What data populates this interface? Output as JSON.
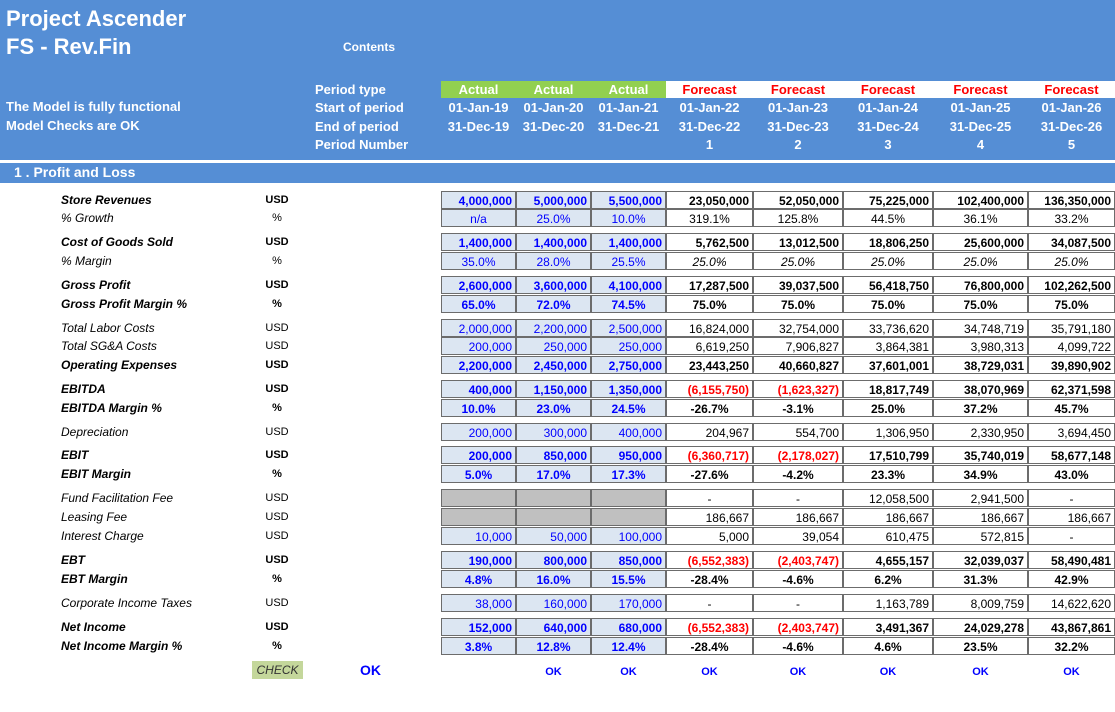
{
  "header": {
    "title1": "Project Ascender",
    "title2": "FS - Rev.Fin",
    "contents": "Contents",
    "status1": "The Model is fully functional",
    "status2": "Model Checks are OK",
    "row_labels": [
      "Period type",
      "Start of period",
      "End of period",
      "Period Number"
    ]
  },
  "periods": [
    {
      "type": "Actual",
      "start": "01-Jan-19",
      "end": "31-Dec-19",
      "num": ""
    },
    {
      "type": "Actual",
      "start": "01-Jan-20",
      "end": "31-Dec-20",
      "num": ""
    },
    {
      "type": "Actual",
      "start": "01-Jan-21",
      "end": "31-Dec-21",
      "num": ""
    },
    {
      "type": "Forecast",
      "start": "01-Jan-22",
      "end": "31-Dec-22",
      "num": "1"
    },
    {
      "type": "Forecast",
      "start": "01-Jan-23",
      "end": "31-Dec-23",
      "num": "2"
    },
    {
      "type": "Forecast",
      "start": "01-Jan-24",
      "end": "31-Dec-24",
      "num": "3"
    },
    {
      "type": "Forecast",
      "start": "01-Jan-25",
      "end": "31-Dec-25",
      "num": "4"
    },
    {
      "type": "Forecast",
      "start": "01-Jan-26",
      "end": "31-Dec-26",
      "num": "5"
    }
  ],
  "colors": {
    "header_bg": "#558ed5",
    "actual_tag": "#92d050",
    "forecast_text": "#ff0000",
    "actual_cell": "#dce6f2",
    "check_bg": "#c4d79b"
  },
  "section_title": "1 . Profit and Loss",
  "rows": [
    {
      "label": "Store Revenues",
      "unit": "USD",
      "bold": true,
      "values": [
        "4,000,000",
        "5,000,000",
        "5,500,000",
        "23,050,000",
        "52,050,000",
        "75,225,000",
        "102,400,000",
        "136,350,000"
      ]
    },
    {
      "label": "% Growth",
      "unit": "%",
      "bold": false,
      "values": [
        "n/a",
        "25.0%",
        "10.0%",
        "319.1%",
        "125.8%",
        "44.5%",
        "36.1%",
        "33.2%"
      ]
    },
    {
      "label": "Cost of Goods Sold",
      "unit": "USD",
      "bold": true,
      "values": [
        "1,400,000",
        "1,400,000",
        "1,400,000",
        "5,762,500",
        "13,012,500",
        "18,806,250",
        "25,600,000",
        "34,087,500"
      ]
    },
    {
      "label": "% Margin",
      "unit": "%",
      "bold": false,
      "values": [
        "35.0%",
        "28.0%",
        "25.5%",
        "25.0%",
        "25.0%",
        "25.0%",
        "25.0%",
        "25.0%"
      ]
    },
    {
      "label": "Gross Profit",
      "unit": "USD",
      "bold": true,
      "values": [
        "2,600,000",
        "3,600,000",
        "4,100,000",
        "17,287,500",
        "39,037,500",
        "56,418,750",
        "76,800,000",
        "102,262,500"
      ]
    },
    {
      "label": "Gross Profit Margin %",
      "unit": "%",
      "bold": true,
      "values": [
        "65.0%",
        "72.0%",
        "74.5%",
        "75.0%",
        "75.0%",
        "75.0%",
        "75.0%",
        "75.0%"
      ]
    },
    {
      "label": "Total Labor Costs",
      "unit": "USD",
      "bold": false,
      "values": [
        "2,000,000",
        "2,200,000",
        "2,500,000",
        "16,824,000",
        "32,754,000",
        "33,736,620",
        "34,748,719",
        "35,791,180"
      ]
    },
    {
      "label": "Total SG&A Costs",
      "unit": "USD",
      "bold": false,
      "values": [
        "200,000",
        "250,000",
        "250,000",
        "6,619,250",
        "7,906,827",
        "3,864,381",
        "3,980,313",
        "4,099,722"
      ]
    },
    {
      "label": "Operating Expenses",
      "unit": "USD",
      "bold": true,
      "values": [
        "2,200,000",
        "2,450,000",
        "2,750,000",
        "23,443,250",
        "40,660,827",
        "37,601,001",
        "38,729,031",
        "39,890,902"
      ]
    },
    {
      "label": "EBITDA",
      "unit": "USD",
      "bold": true,
      "values": [
        "400,000",
        "1,150,000",
        "1,350,000",
        "(6,155,750)",
        "(1,623,327)",
        "18,817,749",
        "38,070,969",
        "62,371,598"
      ]
    },
    {
      "label": "EBITDA Margin %",
      "unit": "%",
      "bold": true,
      "values": [
        "10.0%",
        "23.0%",
        "24.5%",
        "-26.7%",
        "-3.1%",
        "25.0%",
        "37.2%",
        "45.7%"
      ]
    },
    {
      "label": "Depreciation",
      "unit": "USD",
      "bold": false,
      "values": [
        "200,000",
        "300,000",
        "400,000",
        "204,967",
        "554,700",
        "1,306,950",
        "2,330,950",
        "3,694,450"
      ]
    },
    {
      "label": "EBIT",
      "unit": "USD",
      "bold": true,
      "values": [
        "200,000",
        "850,000",
        "950,000",
        "(6,360,717)",
        "(2,178,027)",
        "17,510,799",
        "35,740,019",
        "58,677,148"
      ]
    },
    {
      "label": "EBIT Margin",
      "unit": "%",
      "bold": true,
      "values": [
        "5.0%",
        "17.0%",
        "17.3%",
        "-27.6%",
        "-4.2%",
        "23.3%",
        "34.9%",
        "43.0%"
      ]
    },
    {
      "label": "Fund Facilitation Fee",
      "unit": "USD",
      "bold": false,
      "values": [
        "",
        "",
        "",
        "-",
        "-",
        "12,058,500",
        "2,941,500",
        "-"
      ]
    },
    {
      "label": "Leasing Fee",
      "unit": "USD",
      "bold": false,
      "values": [
        "",
        "",
        "",
        "186,667",
        "186,667",
        "186,667",
        "186,667",
        "186,667"
      ]
    },
    {
      "label": "Interest Charge",
      "unit": "USD",
      "bold": false,
      "values": [
        "10,000",
        "50,000",
        "100,000",
        "5,000",
        "39,054",
        "610,475",
        "572,815",
        "-"
      ]
    },
    {
      "label": "EBT",
      "unit": "USD",
      "bold": true,
      "values": [
        "190,000",
        "800,000",
        "850,000",
        "(6,552,383)",
        "(2,403,747)",
        "4,655,157",
        "32,039,037",
        "58,490,481"
      ]
    },
    {
      "label": "EBT Margin",
      "unit": "%",
      "bold": true,
      "values": [
        "4.8%",
        "16.0%",
        "15.5%",
        "-28.4%",
        "-4.6%",
        "6.2%",
        "31.3%",
        "42.9%"
      ]
    },
    {
      "label": "Corporate Income Taxes",
      "unit": "USD",
      "bold": false,
      "values": [
        "38,000",
        "160,000",
        "170,000",
        "-",
        "-",
        "1,163,789",
        "8,009,759",
        "14,622,620"
      ]
    },
    {
      "label": "Net Income",
      "unit": "USD",
      "bold": true,
      "values": [
        "152,000",
        "640,000",
        "680,000",
        "(6,552,383)",
        "(2,403,747)",
        "3,491,367",
        "24,029,278",
        "43,867,861"
      ]
    },
    {
      "label": "Net Income Margin %",
      "unit": "%",
      "bold": true,
      "values": [
        "3.8%",
        "12.8%",
        "12.4%",
        "-28.4%",
        "-4.6%",
        "4.6%",
        "23.5%",
        "32.2%"
      ]
    }
  ],
  "footer": {
    "check": "CHECK",
    "ok_main": "OK",
    "oks": [
      "OK",
      "OK",
      "OK",
      "OK",
      "OK",
      "OK",
      "OK"
    ]
  }
}
